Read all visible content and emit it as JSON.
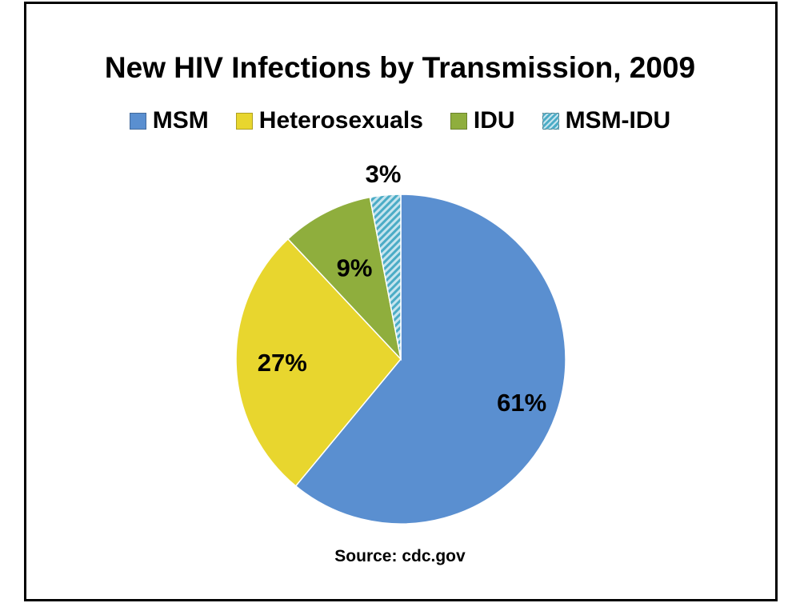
{
  "chart_data": {
    "type": "pie",
    "title": "New HIV Infections by Transmission, 2009",
    "categories": [
      "MSM",
      "Heterosexuals",
      "IDU",
      "MSM-IDU"
    ],
    "values": [
      61,
      27,
      9,
      3
    ],
    "labels": [
      "61%",
      "27%",
      "9%",
      "3%"
    ],
    "unit": "%",
    "legend_position": "top",
    "colors": {
      "MSM": "#5a8fd0",
      "Heterosexuals": "#e8d62e",
      "IDU": "#8fae3d",
      "MSM-IDU": "#4bacc6"
    },
    "patterns": {
      "MSM-IDU": "diagonal-hatch"
    },
    "source": "Source: cdc.gov"
  }
}
